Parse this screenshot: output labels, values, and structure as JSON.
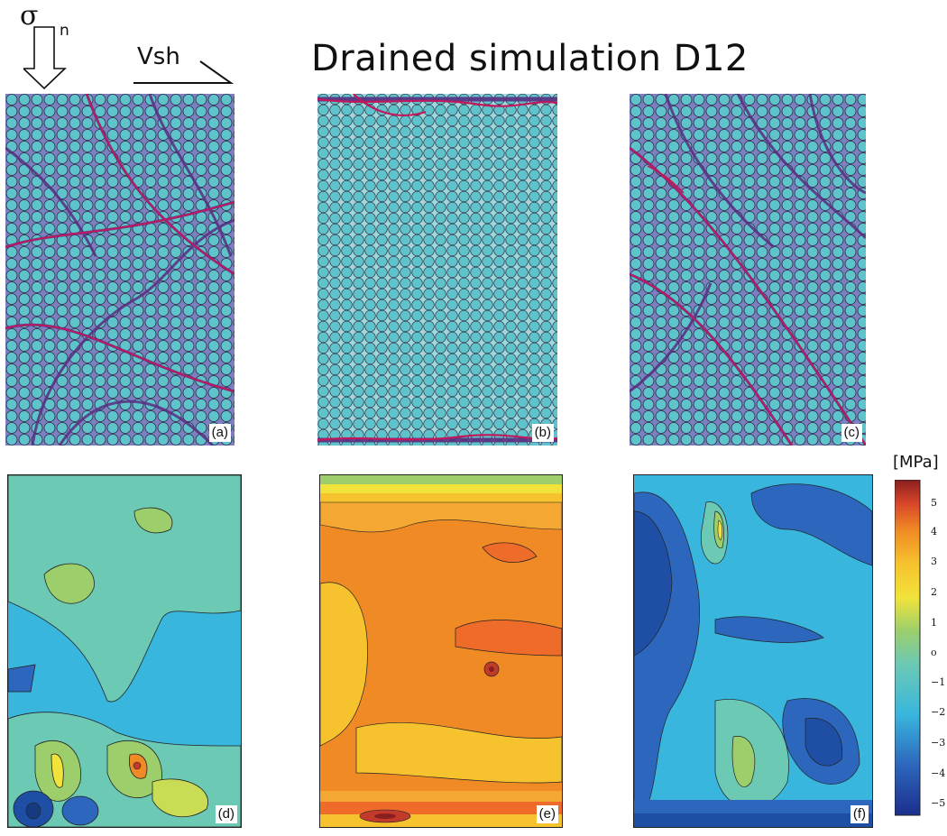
{
  "title": "Drained simulation D12",
  "load": {
    "sigma": "σ",
    "sigma_sub": "n",
    "vsh": "Vsh"
  },
  "panels": {
    "a": "(a)",
    "b": "(b)",
    "c": "(c)",
    "d": "(d)",
    "e": "(e)",
    "f": "(f)"
  },
  "colorbar": {
    "unit": "[MPa]",
    "ticks": [
      "5",
      "4",
      "3",
      "2",
      "1",
      "o",
      "−1",
      "−2",
      "−3",
      "−4",
      "−5"
    ]
  },
  "colors": {
    "grain": "#5fc3cc",
    "chain": "#c2185b",
    "chain_dark": "#5a2d82",
    "stress_low": "#1f4fa5",
    "stress_mid": "#6bc5a5",
    "stress_high": "#f08a24"
  }
}
